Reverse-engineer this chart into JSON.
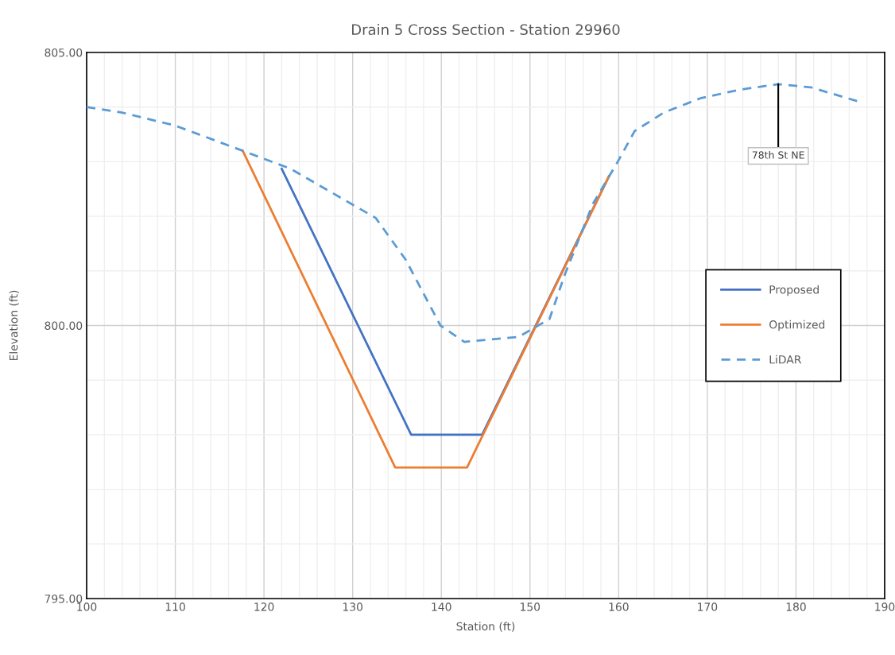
{
  "chart_data": {
    "type": "line",
    "title": "Drain 5 Cross Section - Station 29960",
    "xlabel": "Station (ft)",
    "ylabel": "Elevation (ft)",
    "series": [
      {
        "name": "Proposed",
        "color": "#4472c4",
        "line_style": "solid",
        "x": [
          122.0,
          136.6,
          144.6,
          158.9
        ],
        "values": [
          802.87,
          798.0,
          798.0,
          802.73
        ]
      },
      {
        "name": "Optimized",
        "color": "#ed7d31",
        "line_style": "solid",
        "x": [
          117.6,
          134.8,
          142.9,
          158.9
        ],
        "values": [
          803.2,
          797.4,
          797.4,
          802.73
        ]
      },
      {
        "name": "LiDAR",
        "color": "#5b9bd5",
        "line_style": "dashed",
        "x": [
          100,
          104,
          110,
          117.6,
          123,
          132.6,
          136.0,
          139.9,
          142.6,
          148.7,
          152.2,
          153.9,
          157.1,
          159.9,
          161.8,
          165.1,
          169.2,
          173.7,
          178.0,
          181.7,
          187.1
        ],
        "values": [
          804.0,
          803.9,
          803.66,
          803.2,
          802.87,
          801.97,
          801.2,
          800.0,
          799.7,
          799.79,
          800.12,
          800.92,
          802.23,
          803.0,
          803.56,
          803.9,
          804.16,
          804.32,
          804.42,
          804.36,
          804.1
        ]
      }
    ],
    "annotations": [
      {
        "text": "78th St NE",
        "x": 178.0,
        "y": 804.42
      }
    ],
    "xlim": [
      100,
      190
    ],
    "xticks": [
      100,
      {
        "value": 102,
        "label": null
      },
      {
        "value": 104,
        "label": null
      },
      {
        "value": 106,
        "label": null
      },
      {
        "value": 108,
        "label": null
      },
      110,
      {
        "value": 112,
        "label": null
      },
      {
        "value": 114,
        "label": null
      },
      {
        "value": 116,
        "label": null
      },
      {
        "value": 118,
        "label": null
      },
      120,
      {
        "value": 122,
        "label": null
      },
      {
        "value": 124,
        "label": null
      },
      {
        "value": 126,
        "label": null
      },
      {
        "value": 128,
        "label": null
      },
      130,
      {
        "value": 132,
        "label": null
      },
      {
        "value": 134,
        "label": null
      },
      {
        "value": 136,
        "label": null
      },
      {
        "value": 138,
        "label": null
      },
      140,
      {
        "value": 142,
        "label": null
      },
      {
        "value": 144,
        "label": null
      },
      {
        "value": 146,
        "label": null
      },
      {
        "value": 148,
        "label": null
      },
      150,
      {
        "value": 152,
        "label": null
      },
      {
        "value": 154,
        "label": null
      },
      {
        "value": 156,
        "label": null
      },
      {
        "value": 158,
        "label": null
      },
      160,
      {
        "value": 162,
        "label": null
      },
      {
        "value": 164,
        "label": null
      },
      {
        "value": 166,
        "label": null
      },
      {
        "value": 168,
        "label": null
      },
      170,
      {
        "value": 172,
        "label": null
      },
      {
        "value": 174,
        "label": null
      },
      {
        "value": 176,
        "label": null
      },
      {
        "value": 178,
        "label": null
      },
      180,
      {
        "value": 182,
        "label": null
      },
      {
        "value": 184,
        "label": null
      },
      {
        "value": 186,
        "label": null
      },
      {
        "value": 188,
        "label": null
      },
      190
    ],
    "ylim": [
      795,
      805
    ],
    "yticks": [
      {
        "value": 795,
        "label": "795.00"
      },
      {
        "value": 796,
        "label": null
      },
      {
        "value": 797,
        "label": null
      },
      {
        "value": 798,
        "label": null
      },
      {
        "value": 799,
        "label": null
      },
      {
        "value": 800,
        "label": "800.00"
      },
      {
        "value": 801,
        "label": null
      },
      {
        "value": 802,
        "label": null
      },
      {
        "value": 803,
        "label": null
      },
      {
        "value": 804,
        "label": null
      },
      {
        "value": 805,
        "label": "805.00"
      }
    ],
    "grid": true,
    "legend": "right",
    "marker": "none"
  }
}
